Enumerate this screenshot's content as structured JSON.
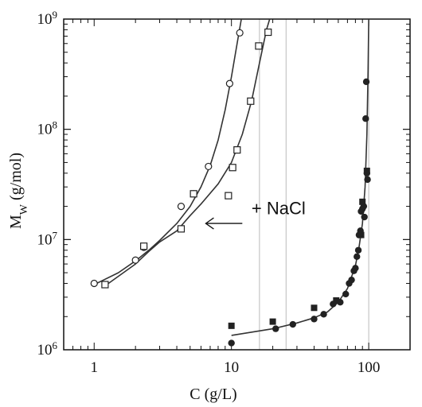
{
  "chart_data": {
    "type": "scatter",
    "xscale": "log",
    "yscale": "log",
    "xlim": [
      0.6,
      200
    ],
    "ylim": [
      1000000,
      1000000000
    ],
    "xlabel": "C (g/L)",
    "ylabel": "Mw (g/mol)",
    "ylabel_main": "M",
    "ylabel_sub": "W",
    "ylabel_rest": " (g/mol)",
    "x_ticks": [
      {
        "value": 1,
        "label": "1"
      },
      {
        "value": 10,
        "label": "10"
      },
      {
        "value": 100,
        "label": "100"
      }
    ],
    "y_ticks": [
      {
        "value": 1000000,
        "base": "10",
        "exp": "6"
      },
      {
        "value": 10000000,
        "base": "10",
        "exp": "7"
      },
      {
        "value": 100000000,
        "base": "10",
        "exp": "8"
      },
      {
        "value": 1000000000,
        "base": "10",
        "exp": "9"
      }
    ],
    "vertical_lines": [
      16,
      25,
      100
    ],
    "annotation": {
      "text": "+ NaCl",
      "arrow_from": [
        12,
        14000000
      ],
      "arrow_to": [
        6.5,
        14000000
      ],
      "text_pos": [
        14,
        17000000
      ]
    },
    "colors": {
      "markers": "#222222",
      "curves": "#333333",
      "vlines": "#bbbbbb"
    },
    "series": [
      {
        "marker": "open-circle",
        "points": [
          [
            1,
            4000000
          ],
          [
            2,
            6500000
          ],
          [
            2.3,
            8500000
          ],
          [
            4.3,
            20000000
          ],
          [
            5.3,
            26000000
          ],
          [
            6.8,
            46000000
          ],
          [
            9.7,
            260000000
          ],
          [
            11.5,
            750000000
          ]
        ]
      },
      {
        "marker": "open-square",
        "points": [
          [
            1.2,
            3900000
          ],
          [
            2.3,
            8700000
          ],
          [
            4.3,
            12500000
          ],
          [
            5.3,
            26000000
          ],
          [
            9.5,
            25000000
          ],
          [
            10.2,
            45000000
          ],
          [
            11,
            65000000
          ],
          [
            13.8,
            180000000
          ],
          [
            15.8,
            570000000
          ],
          [
            18.5,
            760000000
          ]
        ]
      },
      {
        "marker": "filled-circle",
        "points": [
          [
            10,
            1150000
          ],
          [
            21,
            1550000
          ],
          [
            28,
            1700000
          ],
          [
            40,
            1900000
          ],
          [
            47,
            2100000
          ],
          [
            55,
            2600000
          ],
          [
            62,
            2700000
          ],
          [
            68,
            3200000
          ],
          [
            72,
            4000000
          ],
          [
            75,
            4300000
          ],
          [
            78,
            5200000
          ],
          [
            80,
            5500000
          ],
          [
            82,
            7000000
          ],
          [
            84,
            8000000
          ],
          [
            85,
            11000000
          ],
          [
            87,
            12000000
          ],
          [
            88,
            18000000
          ],
          [
            90,
            19000000
          ],
          [
            92,
            20000000
          ],
          [
            93,
            16000000
          ],
          [
            95,
            125000000
          ],
          [
            96,
            270000000
          ],
          [
            97,
            40000000
          ],
          [
            98,
            35000000
          ]
        ]
      },
      {
        "marker": "filled-square",
        "points": [
          [
            10,
            1650000
          ],
          [
            20,
            1800000
          ],
          [
            40,
            2400000
          ],
          [
            58,
            2800000
          ],
          [
            88,
            11000000
          ],
          [
            90,
            22000000
          ],
          [
            97,
            42000000
          ]
        ]
      }
    ],
    "curves": [
      {
        "points": [
          [
            1,
            3900000
          ],
          [
            1.5,
            5000000
          ],
          [
            2,
            6400000
          ],
          [
            2.5,
            8000000
          ],
          [
            3,
            9800000
          ],
          [
            4,
            14000000
          ],
          [
            5,
            20000000
          ],
          [
            6,
            30000000
          ],
          [
            7,
            47000000
          ],
          [
            8,
            80000000
          ],
          [
            9,
            150000000
          ],
          [
            10,
            300000000
          ],
          [
            11,
            600000000
          ],
          [
            11.8,
            1000000000
          ]
        ]
      },
      {
        "points": [
          [
            1.2,
            3800000
          ],
          [
            2,
            6000000
          ],
          [
            2.5,
            7800000
          ],
          [
            3,
            9500000
          ],
          [
            4,
            12000000
          ],
          [
            5,
            16500000
          ],
          [
            6,
            21000000
          ],
          [
            8,
            32000000
          ],
          [
            10,
            50000000
          ],
          [
            12,
            90000000
          ],
          [
            14,
            180000000
          ],
          [
            16,
            400000000
          ],
          [
            18,
            800000000
          ],
          [
            19,
            1000000000
          ]
        ]
      },
      {
        "points": [
          [
            10,
            1350000
          ],
          [
            20,
            1550000
          ],
          [
            30,
            1750000
          ],
          [
            40,
            1950000
          ],
          [
            50,
            2200000
          ],
          [
            60,
            2700000
          ],
          [
            70,
            3600000
          ],
          [
            80,
            5800000
          ],
          [
            85,
            8500000
          ],
          [
            90,
            14000000
          ],
          [
            94,
            30000000
          ],
          [
            97,
            90000000
          ],
          [
            99,
            350000000
          ],
          [
            100,
            1000000000
          ]
        ]
      }
    ]
  }
}
